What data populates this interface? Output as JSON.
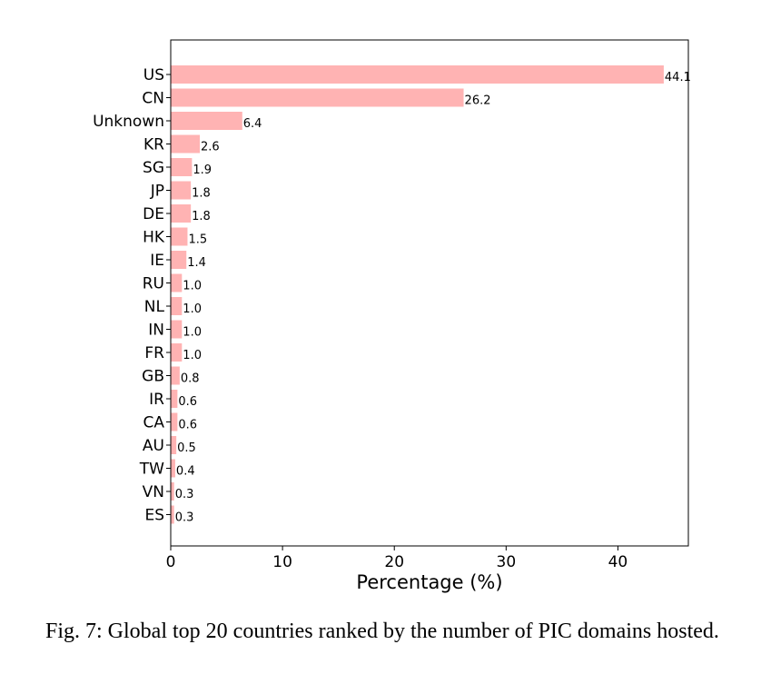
{
  "chart_data": {
    "type": "bar",
    "orientation": "horizontal",
    "categories": [
      "US",
      "CN",
      "Unknown",
      "KR",
      "SG",
      "JP",
      "DE",
      "HK",
      "IE",
      "RU",
      "NL",
      "IN",
      "FR",
      "GB",
      "IR",
      "CA",
      "AU",
      "TW",
      "VN",
      "ES"
    ],
    "values": [
      44.1,
      26.2,
      6.4,
      2.6,
      1.9,
      1.8,
      1.8,
      1.5,
      1.4,
      1.0,
      1.0,
      1.0,
      1.0,
      0.8,
      0.6,
      0.6,
      0.5,
      0.4,
      0.3,
      0.3
    ],
    "value_labels": [
      "44.1",
      "26.2",
      "6.4",
      "2.6",
      "1.9",
      "1.8",
      "1.8",
      "1.5",
      "1.4",
      "1.0",
      "1.0",
      "1.0",
      "1.0",
      "0.8",
      "0.6",
      "0.6",
      "0.5",
      "0.4",
      "0.3",
      "0.3"
    ],
    "xlabel": "Percentage (%)",
    "ylabel": "",
    "xlim": [
      0,
      46.3
    ],
    "xticks": [
      0,
      10,
      20,
      30,
      40
    ],
    "grid": false,
    "bar_color": "#ffb3b3"
  },
  "caption": "Fig. 7: Global top 20 countries ranked by the number of PIC domains hosted."
}
